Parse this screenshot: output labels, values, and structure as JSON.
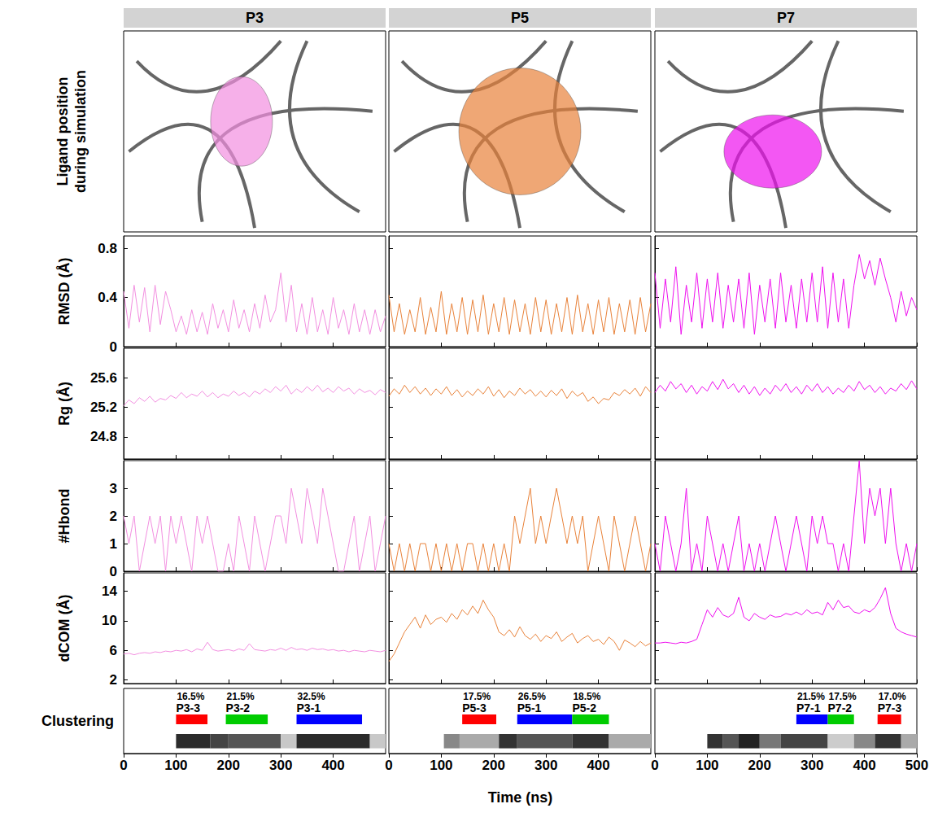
{
  "chart_data": {
    "type": "line",
    "image_row_label": "Ligand position during simulation",
    "xlabel": "Time (ns)",
    "xlim": [
      0,
      500
    ],
    "x": [
      0,
      10,
      20,
      30,
      40,
      50,
      60,
      70,
      80,
      90,
      100,
      110,
      120,
      130,
      140,
      150,
      160,
      170,
      180,
      190,
      200,
      210,
      220,
      230,
      240,
      250,
      260,
      270,
      280,
      290,
      300,
      310,
      320,
      330,
      340,
      350,
      360,
      370,
      380,
      390,
      400,
      410,
      420,
      430,
      440,
      450,
      460,
      470,
      480,
      490,
      500
    ],
    "panels": [
      {
        "title": "P3",
        "xticks": [
          0,
          100,
          200,
          300,
          400
        ],
        "clusters": [
          {
            "name": "P3-3",
            "share": "16.5%",
            "start": 100,
            "end": 160,
            "color": "#ff0000"
          },
          {
            "name": "P3-2",
            "share": "21.5%",
            "start": 195,
            "end": 275,
            "color": "#00cc00"
          },
          {
            "name": "P3-1",
            "share": "32.5%",
            "start": 330,
            "end": 455,
            "color": "#0000ff"
          }
        ],
        "strip": [
          {
            "start": 100,
            "end": 165,
            "color": "#2b2b2b"
          },
          {
            "start": 165,
            "end": 200,
            "color": "#444444"
          },
          {
            "start": 200,
            "end": 300,
            "color": "#555555"
          },
          {
            "start": 300,
            "end": 330,
            "color": "#c8c8c8"
          },
          {
            "start": 330,
            "end": 470,
            "color": "#2b2b2b"
          },
          {
            "start": 470,
            "end": 500,
            "color": "#c8c8c8"
          }
        ]
      },
      {
        "title": "P5",
        "xticks": [
          0,
          100,
          200,
          300,
          400
        ],
        "clusters": [
          {
            "name": "P5-3",
            "share": "17.5%",
            "start": 140,
            "end": 205,
            "color": "#ff0000"
          },
          {
            "name": "P5-1",
            "share": "26.5%",
            "start": 245,
            "end": 350,
            "color": "#0000ff"
          },
          {
            "name": "P5-2",
            "share": "18.5%",
            "start": 350,
            "end": 420,
            "color": "#00cc00"
          }
        ],
        "strip": [
          {
            "start": 105,
            "end": 135,
            "color": "#888888"
          },
          {
            "start": 135,
            "end": 210,
            "color": "#aaaaaa"
          },
          {
            "start": 210,
            "end": 245,
            "color": "#333333"
          },
          {
            "start": 245,
            "end": 350,
            "color": "#555555"
          },
          {
            "start": 350,
            "end": 420,
            "color": "#333333"
          },
          {
            "start": 420,
            "end": 500,
            "color": "#aaaaaa"
          }
        ]
      },
      {
        "title": "P7",
        "xticks": [
          0,
          100,
          200,
          300,
          400,
          500
        ],
        "clusters": [
          {
            "name": "P7-1",
            "share": "21.5%",
            "start": 270,
            "end": 330,
            "color": "#0000ff"
          },
          {
            "name": "P7-2",
            "share": "17.5%",
            "start": 330,
            "end": 380,
            "color": "#00cc00"
          },
          {
            "name": "P7-3",
            "share": "17.0%",
            "start": 425,
            "end": 470,
            "color": "#ff0000"
          }
        ],
        "strip": [
          {
            "start": 100,
            "end": 130,
            "color": "#333333"
          },
          {
            "start": 130,
            "end": 160,
            "color": "#555555"
          },
          {
            "start": 160,
            "end": 200,
            "color": "#222222"
          },
          {
            "start": 200,
            "end": 240,
            "color": "#777777"
          },
          {
            "start": 240,
            "end": 330,
            "color": "#444444"
          },
          {
            "start": 330,
            "end": 380,
            "color": "#cccccc"
          },
          {
            "start": 380,
            "end": 420,
            "color": "#888888"
          },
          {
            "start": 420,
            "end": 470,
            "color": "#333333"
          },
          {
            "start": 470,
            "end": 500,
            "color": "#aaaaaa"
          }
        ]
      }
    ],
    "cluster_row_label": "Clustering",
    "rows": [
      {
        "ylabel": "RMSD (Å)",
        "ylim": [
          0,
          0.9
        ],
        "yticks": [
          0,
          0.4,
          0.8
        ],
        "series": [
          {
            "name": "P3",
            "color": "#f28fe0",
            "values": [
              0.45,
              0.15,
              0.5,
              0.2,
              0.48,
              0.12,
              0.5,
              0.18,
              0.45,
              0.3,
              0.12,
              0.25,
              0.1,
              0.3,
              0.12,
              0.28,
              0.1,
              0.35,
              0.15,
              0.3,
              0.12,
              0.38,
              0.15,
              0.3,
              0.12,
              0.35,
              0.15,
              0.42,
              0.2,
              0.3,
              0.6,
              0.2,
              0.5,
              0.12,
              0.35,
              0.1,
              0.4,
              0.12,
              0.3,
              0.1,
              0.4,
              0.15,
              0.3,
              0.1,
              0.35,
              0.12,
              0.3,
              0.1,
              0.3,
              0.12,
              0.25
            ]
          },
          {
            "name": "P5",
            "color": "#e8823a",
            "values": [
              0.42,
              0.12,
              0.35,
              0.1,
              0.3,
              0.12,
              0.4,
              0.1,
              0.32,
              0.12,
              0.45,
              0.1,
              0.35,
              0.12,
              0.4,
              0.1,
              0.38,
              0.12,
              0.42,
              0.1,
              0.35,
              0.12,
              0.4,
              0.1,
              0.38,
              0.12,
              0.35,
              0.1,
              0.4,
              0.12,
              0.38,
              0.1,
              0.35,
              0.12,
              0.4,
              0.1,
              0.42,
              0.12,
              0.35,
              0.1,
              0.38,
              0.12,
              0.4,
              0.1,
              0.35,
              0.12,
              0.38,
              0.1,
              0.4,
              0.12,
              0.35
            ]
          },
          {
            "name": "P7",
            "color": "#ee10ee",
            "values": [
              0.6,
              0.15,
              0.55,
              0.2,
              0.65,
              0.1,
              0.5,
              0.2,
              0.6,
              0.15,
              0.55,
              0.2,
              0.6,
              0.15,
              0.5,
              0.2,
              0.55,
              0.15,
              0.6,
              0.1,
              0.5,
              0.2,
              0.55,
              0.15,
              0.6,
              0.2,
              0.5,
              0.15,
              0.55,
              0.2,
              0.6,
              0.2,
              0.65,
              0.15,
              0.6,
              0.2,
              0.55,
              0.15,
              0.5,
              0.75,
              0.55,
              0.7,
              0.5,
              0.72,
              0.55,
              0.4,
              0.2,
              0.45,
              0.25,
              0.4,
              0.3
            ]
          }
        ]
      },
      {
        "ylabel": "Rg (Å)",
        "ylim": [
          24.5,
          26.0
        ],
        "yticks": [
          24.8,
          25.2,
          25.6
        ],
        "series": [
          {
            "name": "P3",
            "color": "#f28fe0",
            "values": [
              25.22,
              25.3,
              25.25,
              25.33,
              25.28,
              25.35,
              25.27,
              25.32,
              25.3,
              25.36,
              25.32,
              25.4,
              25.33,
              25.38,
              25.35,
              25.42,
              25.34,
              25.4,
              25.33,
              25.38,
              25.35,
              25.42,
              25.36,
              25.4,
              25.34,
              25.42,
              25.38,
              25.45,
              25.4,
              25.48,
              25.42,
              25.5,
              25.38,
              25.45,
              25.4,
              25.48,
              25.42,
              25.5,
              25.41,
              25.46,
              25.4,
              25.48,
              25.42,
              25.46,
              25.38,
              25.45,
              25.4,
              25.43,
              25.37,
              25.44,
              25.4
            ]
          },
          {
            "name": "P5",
            "color": "#e8823a",
            "values": [
              25.35,
              25.45,
              25.38,
              25.5,
              25.4,
              25.48,
              25.38,
              25.46,
              25.36,
              25.45,
              25.38,
              25.48,
              25.36,
              25.44,
              25.34,
              25.42,
              25.36,
              25.45,
              25.38,
              25.48,
              25.35,
              25.44,
              25.33,
              25.42,
              25.36,
              25.46,
              25.38,
              25.44,
              25.35,
              25.42,
              25.34,
              25.43,
              25.36,
              25.45,
              25.32,
              25.42,
              25.35,
              25.4,
              25.28,
              25.34,
              25.25,
              25.32,
              25.3,
              25.4,
              25.36,
              25.44,
              25.38,
              25.46,
              25.35,
              25.48,
              25.4
            ]
          },
          {
            "name": "P7",
            "color": "#ee10ee",
            "values": [
              25.4,
              25.5,
              25.42,
              25.55,
              25.45,
              25.52,
              25.4,
              25.5,
              25.38,
              25.48,
              25.42,
              25.55,
              25.44,
              25.58,
              25.45,
              25.52,
              25.4,
              25.5,
              25.38,
              25.48,
              25.36,
              25.46,
              25.38,
              25.5,
              25.42,
              25.52,
              25.4,
              25.48,
              25.38,
              25.5,
              25.42,
              25.52,
              25.4,
              25.48,
              25.38,
              25.46,
              25.4,
              25.5,
              25.42,
              25.55,
              25.44,
              25.5,
              25.4,
              25.48,
              25.38,
              25.46,
              25.42,
              25.52,
              25.44,
              25.56,
              25.45
            ]
          }
        ]
      },
      {
        "ylabel": "#Hbond",
        "ylim": [
          0,
          4
        ],
        "yticks": [
          0,
          1,
          2,
          3
        ],
        "series": [
          {
            "name": "P3",
            "color": "#f28fe0",
            "values": [
              2,
              1,
              2,
              0,
              1,
              2,
              1,
              2,
              0,
              2,
              1,
              2,
              1,
              0,
              2,
              1,
              2,
              1,
              0,
              0,
              1,
              0,
              2,
              1,
              0,
              2,
              1,
              0,
              1,
              2,
              2,
              1,
              3,
              2,
              1,
              3,
              2,
              1,
              3,
              2,
              1,
              0,
              0,
              1,
              2,
              0,
              1,
              2,
              0,
              1,
              2
            ]
          },
          {
            "name": "P5",
            "color": "#e8823a",
            "values": [
              1,
              0,
              1,
              0,
              1,
              0,
              1,
              1,
              0,
              1,
              0,
              1,
              0,
              1,
              0,
              1,
              1,
              0,
              1,
              0,
              1,
              0,
              1,
              0,
              2,
              1,
              2,
              3,
              1,
              2,
              1,
              2,
              3,
              2,
              1,
              2,
              1,
              2,
              0,
              1,
              2,
              1,
              0,
              2,
              1,
              0,
              1,
              2,
              1,
              0,
              1
            ]
          },
          {
            "name": "P7",
            "color": "#ee10ee",
            "values": [
              1,
              0,
              2,
              1,
              0,
              1,
              3,
              0,
              1,
              0,
              2,
              1,
              0,
              1,
              0,
              1,
              2,
              0,
              1,
              0,
              1,
              0,
              1,
              2,
              1,
              0,
              1,
              2,
              1,
              0,
              2,
              1,
              2,
              1,
              1,
              0,
              1,
              0,
              2,
              4,
              1,
              3,
              2,
              3,
              1,
              3,
              1,
              0,
              1,
              0,
              1
            ]
          }
        ]
      },
      {
        "ylabel": "dCOM (Å)",
        "ylim": [
          1.5,
          16.5
        ],
        "yticks": [
          2,
          6,
          10,
          14
        ],
        "series": [
          {
            "name": "P3",
            "color": "#f28fe0",
            "values": [
              5.5,
              5.6,
              5.4,
              5.6,
              5.7,
              5.6,
              5.8,
              5.7,
              5.9,
              5.8,
              6.0,
              5.9,
              6.1,
              5.8,
              6.2,
              6.0,
              7.1,
              6.1,
              5.9,
              6.0,
              6.1,
              5.9,
              6.2,
              6.0,
              6.9,
              6.1,
              6.0,
              5.9,
              6.1,
              6.0,
              6.3,
              6.0,
              6.4,
              6.1,
              6.2,
              6.0,
              6.3,
              6.1,
              6.2,
              6.0,
              6.1,
              5.9,
              6.0,
              5.8,
              6.0,
              5.9,
              5.8,
              6.0,
              5.9,
              5.8,
              6.0
            ]
          },
          {
            "name": "P5",
            "color": "#e8823a",
            "values": [
              4.5,
              5.5,
              7.0,
              8.5,
              9.5,
              10.5,
              9.0,
              10.8,
              9.5,
              10.2,
              10.5,
              9.8,
              11.0,
              10.2,
              11.5,
              10.8,
              12.0,
              11.0,
              12.8,
              11.5,
              10.5,
              8.5,
              8.0,
              8.8,
              7.8,
              9.2,
              8.0,
              7.5,
              8.2,
              7.2,
              8.0,
              7.6,
              8.5,
              7.2,
              7.8,
              8.3,
              7.0,
              7.6,
              8.0,
              7.2,
              7.5,
              6.8,
              7.8,
              7.2,
              6.0,
              7.4,
              7.0,
              6.5,
              7.2,
              6.6,
              7.0
            ]
          },
          {
            "name": "P7",
            "color": "#ee10ee",
            "values": [
              7.0,
              7.0,
              7.1,
              7.0,
              6.9,
              7.1,
              7.0,
              7.2,
              7.5,
              9.5,
              11.5,
              10.5,
              11.8,
              10.8,
              10.5,
              11.0,
              13.2,
              10.5,
              10.0,
              11.0,
              10.5,
              10.2,
              10.8,
              10.5,
              10.6,
              11.0,
              10.8,
              11.2,
              10.8,
              11.5,
              11.0,
              11.2,
              10.8,
              12.5,
              11.5,
              12.8,
              11.8,
              12.0,
              11.2,
              11.0,
              11.5,
              11.2,
              11.8,
              13.0,
              14.5,
              11.0,
              9.0,
              8.5,
              8.2,
              8.0,
              7.8
            ]
          }
        ]
      }
    ]
  }
}
